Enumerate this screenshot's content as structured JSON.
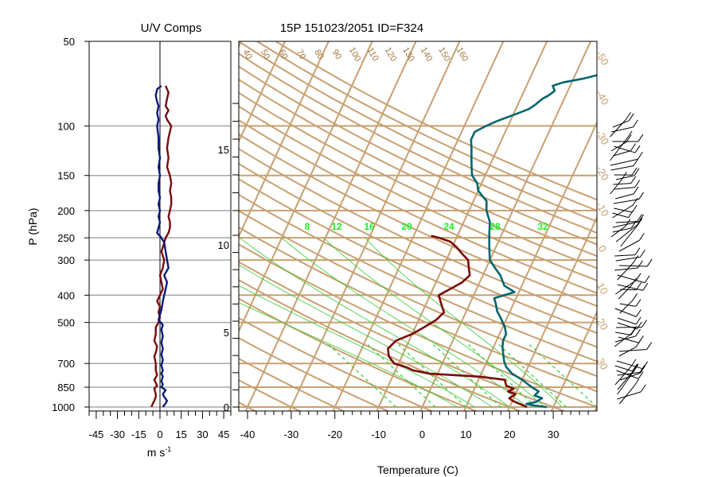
{
  "header": {
    "left_title": "U/V Comps",
    "right_title": "15P 151023/2051 ID=F324"
  },
  "chart_data": [
    {
      "type": "line",
      "title": "U/V Comps",
      "xlabel": "m s",
      "xlabel_superscript": "-1",
      "ylabel": "P (hPa)",
      "y_scale": "log",
      "ylim": [
        1000,
        50
      ],
      "xlim": [
        -50,
        50
      ],
      "x_ticks": [
        -45,
        -30,
        -15,
        0,
        15,
        30,
        45
      ],
      "y_ticks": [
        50,
        100,
        150,
        200,
        250,
        300,
        400,
        500,
        700,
        850,
        1000
      ],
      "grid_lines_hpa": [
        100,
        150,
        200,
        250,
        300,
        400,
        500,
        700,
        850,
        1000
      ],
      "colors": {
        "u": "#7a0a0a",
        "v": "#0a1a7a",
        "grid": "#a8a8a8"
      },
      "series": [
        {
          "key": "u",
          "points": [
            [
              -6,
              1000
            ],
            [
              -5,
              970
            ],
            [
              -4,
              950
            ],
            [
              -3,
              920
            ],
            [
              -3,
              900
            ],
            [
              -4,
              860
            ],
            [
              -2,
              840
            ],
            [
              -3,
              820
            ],
            [
              -4,
              800
            ],
            [
              -2,
              770
            ],
            [
              -3,
              740
            ],
            [
              -3,
              700
            ],
            [
              -4,
              660
            ],
            [
              -3,
              640
            ],
            [
              -2,
              610
            ],
            [
              -4,
              580
            ],
            [
              -3,
              550
            ],
            [
              -3,
              520
            ],
            [
              -1,
              500
            ],
            [
              0,
              480
            ],
            [
              -1,
              460
            ],
            [
              0,
              440
            ],
            [
              -2,
              420
            ],
            [
              0,
              400
            ],
            [
              2,
              380
            ],
            [
              1,
              360
            ],
            [
              0,
              340
            ],
            [
              2,
              320
            ],
            [
              3,
              300
            ],
            [
              1,
              280
            ],
            [
              3,
              260
            ],
            [
              4,
              250
            ],
            [
              6,
              240
            ],
            [
              7,
              230
            ],
            [
              7,
              220
            ],
            [
              6,
              210
            ],
            [
              7,
              200
            ],
            [
              8,
              190
            ],
            [
              8,
              180
            ],
            [
              7,
              170
            ],
            [
              8,
              160
            ],
            [
              7,
              150
            ],
            [
              5,
              140
            ],
            [
              6,
              130
            ],
            [
              5,
              120
            ],
            [
              6,
              110
            ],
            [
              8,
              100
            ],
            [
              5,
              95
            ],
            [
              4,
              92
            ],
            [
              6,
              88
            ],
            [
              4,
              85
            ],
            [
              5,
              80
            ],
            [
              6,
              76
            ],
            [
              4,
              72
            ]
          ]
        },
        {
          "key": "v",
          "points": [
            [
              2,
              1000
            ],
            [
              4,
              970
            ],
            [
              5,
              950
            ],
            [
              3,
              920
            ],
            [
              2,
              900
            ],
            [
              4,
              870
            ],
            [
              1,
              850
            ],
            [
              2,
              830
            ],
            [
              1,
              810
            ],
            [
              2,
              780
            ],
            [
              1,
              760
            ],
            [
              2,
              740
            ],
            [
              1,
              710
            ],
            [
              2,
              680
            ],
            [
              1,
              650
            ],
            [
              2,
              620
            ],
            [
              1,
              590
            ],
            [
              2,
              560
            ],
            [
              1,
              530
            ],
            [
              2,
              510
            ],
            [
              -1,
              490
            ],
            [
              0,
              470
            ],
            [
              1,
              450
            ],
            [
              2,
              420
            ],
            [
              3,
              400
            ],
            [
              4,
              380
            ],
            [
              5,
              360
            ],
            [
              3,
              340
            ],
            [
              6,
              320
            ],
            [
              5,
              300
            ],
            [
              4,
              280
            ],
            [
              3,
              260
            ],
            [
              1,
              250
            ],
            [
              -2,
              240
            ],
            [
              -1,
              230
            ],
            [
              0,
              220
            ],
            [
              -1,
              210
            ],
            [
              0,
              200
            ],
            [
              -1,
              190
            ],
            [
              0,
              180
            ],
            [
              -1,
              170
            ],
            [
              -1,
              160
            ],
            [
              0,
              150
            ],
            [
              -1,
              140
            ],
            [
              0,
              130
            ],
            [
              -1,
              120
            ],
            [
              -1,
              110
            ],
            [
              -2,
              100
            ],
            [
              -1,
              95
            ],
            [
              -2,
              90
            ],
            [
              -1,
              85
            ],
            [
              -2,
              82
            ],
            [
              -3,
              78
            ],
            [
              -2,
              74
            ],
            [
              1,
              72
            ]
          ]
        }
      ]
    },
    {
      "type": "line",
      "title": "15P 151023/2051 ID=F324",
      "xlabel": "Temperature (C)",
      "x_ticks": [
        -40,
        -30,
        -20,
        -10,
        0,
        10,
        20,
        30
      ],
      "xlim": [
        -42,
        40
      ],
      "y_scale": "log",
      "ylim": [
        1000,
        50
      ],
      "height_km_ticks": [
        "0",
        "5",
        "10",
        "15"
      ],
      "height_km_values": [
        0,
        5,
        10,
        15
      ],
      "mixing_ratio_labels": [
        "8",
        "12",
        "16",
        "20",
        "24",
        "28",
        "32"
      ],
      "theta_labels": [
        "40",
        "50",
        "60",
        "70",
        "80",
        "90",
        "100",
        "110",
        "120",
        "130",
        "140",
        "150",
        "160"
      ],
      "temperature_line_labels": [
        "-50",
        "-40",
        "-30",
        "-20",
        "-10",
        "0",
        "10",
        "20",
        "30"
      ],
      "isobar_lines_hpa": [
        100,
        150,
        200,
        250,
        300,
        400,
        500,
        700,
        850,
        1000
      ],
      "colors": {
        "temperature": "#00666e",
        "dewpoint": "#7a0a0a",
        "background_lines": "#c8a070",
        "moist_adiabat": "#33cc33",
        "mixing_ratio_label": "#22ee22",
        "barbs": "#000000"
      },
      "series": [
        {
          "key": "temperature",
          "points": [
            [
              28.5,
              1000
            ],
            [
              25,
              985
            ],
            [
              23.5,
              975
            ],
            [
              25.5,
              960
            ],
            [
              26.5,
              930
            ],
            [
              24.5,
              910
            ],
            [
              25,
              880
            ],
            [
              23,
              850
            ],
            [
              20,
              800
            ],
            [
              17,
              760
            ],
            [
              15,
              720
            ],
            [
              14,
              690
            ],
            [
              13,
              650
            ],
            [
              12,
              610
            ],
            [
              11.5,
              580
            ],
            [
              11.5,
              550
            ],
            [
              10.5,
              520
            ],
            [
              9,
              490
            ],
            [
              7,
              455
            ],
            [
              6,
              430
            ],
            [
              5,
              410
            ],
            [
              9,
              390
            ],
            [
              6,
              370
            ],
            [
              4,
              340
            ],
            [
              2,
              320
            ],
            [
              0,
              300
            ],
            [
              -1,
              280
            ],
            [
              -2,
              260
            ],
            [
              -3,
              240
            ],
            [
              -4,
              220
            ],
            [
              -6,
              200
            ],
            [
              -7,
              185
            ],
            [
              -10,
              170
            ],
            [
              -11,
              160
            ],
            [
              -13,
              150
            ],
            [
              -14,
              140
            ],
            [
              -15,
              130
            ],
            [
              -16,
              120
            ],
            [
              -17,
              112
            ],
            [
              -17,
              105
            ],
            [
              -15,
              100
            ],
            [
              -13,
              96
            ],
            [
              -11,
              93
            ],
            [
              -9,
              90
            ],
            [
              -7,
              87
            ],
            [
              -6,
              84
            ],
            [
              -5,
              80
            ],
            [
              -4,
              78
            ],
            [
              -3,
              75
            ],
            [
              -4,
              72
            ],
            [
              -2,
              70
            ],
            [
              2,
              68
            ],
            [
              5,
              66
            ]
          ]
        },
        {
          "key": "dewpoint",
          "points": [
            [
              24,
              1000
            ],
            [
              22,
              975
            ],
            [
              20,
              950
            ],
            [
              19,
              930
            ],
            [
              20,
              900
            ],
            [
              18,
              880
            ],
            [
              19,
              860
            ],
            [
              17,
              840
            ],
            [
              16,
              800
            ],
            [
              10,
              780
            ],
            [
              -2,
              760
            ],
            [
              -6,
              740
            ],
            [
              -8,
              720
            ],
            [
              -11,
              700
            ],
            [
              -13,
              660
            ],
            [
              -14,
              620
            ],
            [
              -13,
              580
            ],
            [
              -10,
              550
            ],
            [
              -8,
              520
            ],
            [
              -6,
              490
            ],
            [
              -5,
              460
            ],
            [
              -6,
              440
            ],
            [
              -7,
              420
            ],
            [
              -8,
              400
            ],
            [
              -6,
              380
            ],
            [
              -4,
              360
            ],
            [
              -3,
              340
            ],
            [
              -4,
              320
            ],
            [
              -5,
              300
            ],
            [
              -7,
              285
            ],
            [
              -9,
              270
            ],
            [
              -11,
              258
            ],
            [
              -14,
              250
            ],
            [
              -16,
              246
            ]
          ]
        }
      ],
      "wind_profile": {
        "description_free": true
      }
    }
  ],
  "axes_text": {
    "left_ylabel": "P (hPa)",
    "left_xlabel": "m s",
    "left_xlabel_sup": "-1",
    "right_xlabel": "Temperature (C)"
  }
}
